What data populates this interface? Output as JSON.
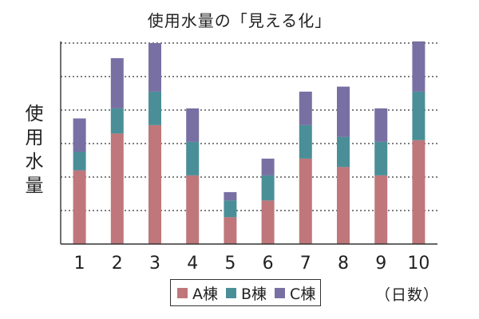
{
  "chart_data": {
    "type": "bar",
    "stacked": true,
    "title": "使用水量の「見える化」",
    "ylabel": "使用水量",
    "xunit": "（日数）",
    "categories": [
      "1",
      "2",
      "3",
      "4",
      "5",
      "6",
      "7",
      "8",
      "9",
      "10"
    ],
    "ylim": [
      0,
      12
    ],
    "grid": true,
    "series": [
      {
        "name": "A棟",
        "color": "#bf777b",
        "values": [
          4.4,
          6.6,
          7.1,
          4.1,
          1.6,
          2.6,
          5.1,
          4.6,
          4.1,
          6.2
        ]
      },
      {
        "name": "B棟",
        "color": "#4a8f98",
        "values": [
          1.1,
          1.5,
          2.0,
          2.0,
          1.0,
          1.5,
          2.0,
          1.8,
          2.0,
          2.9
        ]
      },
      {
        "name": "C棟",
        "color": "#7870a3",
        "values": [
          2.0,
          3.0,
          2.9,
          2.0,
          0.5,
          1.0,
          2.0,
          3.0,
          2.0,
          3.0
        ]
      }
    ]
  },
  "legend": {
    "position": "bottom"
  }
}
